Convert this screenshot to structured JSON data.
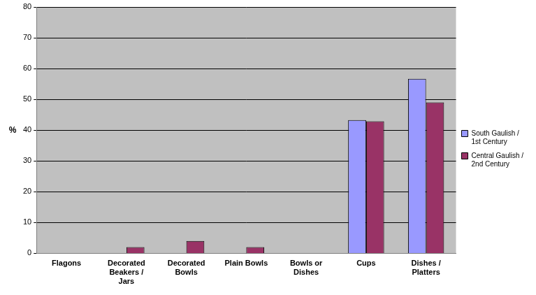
{
  "chart_data": {
    "type": "bar",
    "y_label": "%",
    "categories": [
      "Flagons",
      "Decorated Beakers / Jars",
      "Decorated Bowls",
      "Plain Bowls",
      "Bowls or Dishes",
      "Cups",
      "Dishes / Platters"
    ],
    "series": [
      {
        "name": "South Gaulish / 1st Century",
        "color": "#9999ff",
        "values": [
          0,
          0,
          0,
          0,
          0,
          43.3,
          56.7
        ]
      },
      {
        "name": "Central Gaulish / 2nd Century",
        "color": "#993366",
        "values": [
          0,
          2,
          4,
          2,
          0,
          42.9,
          49
        ]
      }
    ],
    "ylim": [
      0,
      80
    ],
    "yticks": [
      0,
      10,
      20,
      30,
      40,
      50,
      60,
      70,
      80
    ],
    "grid": true,
    "legend": "right"
  }
}
